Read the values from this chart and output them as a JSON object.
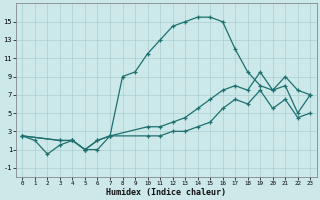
{
  "xlabel": "Humidex (Indice chaleur)",
  "xlim": [
    -0.5,
    23.5
  ],
  "ylim": [
    -2,
    17
  ],
  "xticks": [
    0,
    1,
    2,
    3,
    4,
    5,
    6,
    7,
    8,
    9,
    10,
    11,
    12,
    13,
    14,
    15,
    16,
    17,
    18,
    19,
    20,
    21,
    22,
    23
  ],
  "yticks": [
    -1,
    1,
    3,
    5,
    7,
    9,
    11,
    13,
    15
  ],
  "bg_color": "#cce8e8",
  "line_color": "#1e7070",
  "grid_color": "#aacfcf",
  "line1_x": [
    0,
    1,
    2,
    3,
    4,
    5,
    6,
    7,
    8,
    9,
    10,
    11,
    12,
    13,
    14,
    15,
    16,
    17,
    18,
    19,
    20,
    21,
    22,
    23
  ],
  "line1_y": [
    2.5,
    2.0,
    0.5,
    1.5,
    2.0,
    1.0,
    1.0,
    2.5,
    9.0,
    9.5,
    11.5,
    13.0,
    14.5,
    15.0,
    15.5,
    15.5,
    15.0,
    12.0,
    9.5,
    8.0,
    7.5,
    9.0,
    7.5,
    7.0
  ],
  "line2_x": [
    0,
    3,
    4,
    5,
    6,
    7,
    10,
    11,
    12,
    13,
    14,
    15,
    16,
    17,
    18,
    19,
    20,
    21,
    22,
    23
  ],
  "line2_y": [
    2.5,
    2.0,
    2.0,
    1.0,
    2.0,
    2.5,
    3.5,
    3.5,
    4.0,
    4.5,
    5.5,
    6.5,
    7.5,
    8.0,
    7.5,
    9.5,
    7.5,
    8.0,
    5.0,
    7.0
  ],
  "line3_x": [
    0,
    3,
    4,
    5,
    6,
    7,
    10,
    11,
    12,
    13,
    14,
    15,
    16,
    17,
    18,
    19,
    20,
    21,
    22,
    23
  ],
  "line3_y": [
    2.5,
    2.0,
    2.0,
    1.0,
    2.0,
    2.5,
    2.5,
    2.5,
    3.0,
    3.0,
    3.5,
    4.0,
    5.5,
    6.5,
    6.0,
    7.5,
    5.5,
    6.5,
    4.5,
    5.0
  ]
}
